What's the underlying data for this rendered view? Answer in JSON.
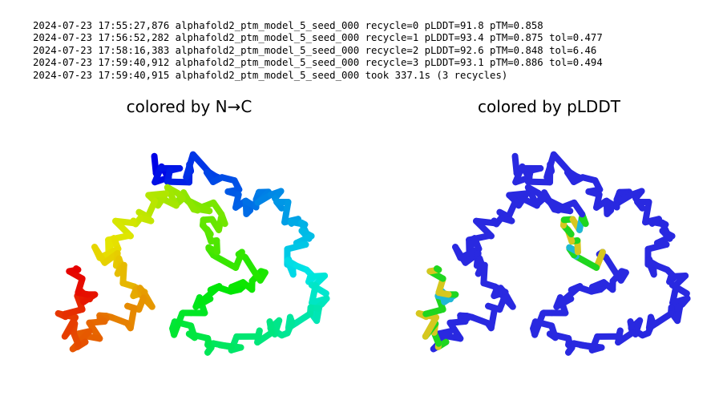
{
  "log": {
    "lines": [
      "2024-07-23 17:55:27,876 alphafold2_ptm_model_5_seed_000 recycle=0 pLDDT=91.8 pTM=0.858",
      "2024-07-23 17:56:52,282 alphafold2_ptm_model_5_seed_000 recycle=1 pLDDT=93.4 pTM=0.875 tol=0.477",
      "2024-07-23 17:58:16,383 alphafold2_ptm_model_5_seed_000 recycle=2 pLDDT=92.6 pTM=0.848 tol=6.46",
      "2024-07-23 17:59:40,912 alphafold2_ptm_model_5_seed_000 recycle=3 pLDDT=93.1 pTM=0.886 tol=0.494",
      "2024-07-23 17:59:40,915 alphafold2_ptm_model_5_seed_000 took 337.1s (3 recycles)"
    ]
  },
  "panels": {
    "left": {
      "title": "colored by N→C"
    },
    "right": {
      "title": "colored by pLDDT"
    }
  },
  "colors": {
    "nc_start": "#0000cc",
    "nc_end": "#ff0033",
    "plddt_high": "#3333dd",
    "plddt_low": "#ffff00"
  }
}
